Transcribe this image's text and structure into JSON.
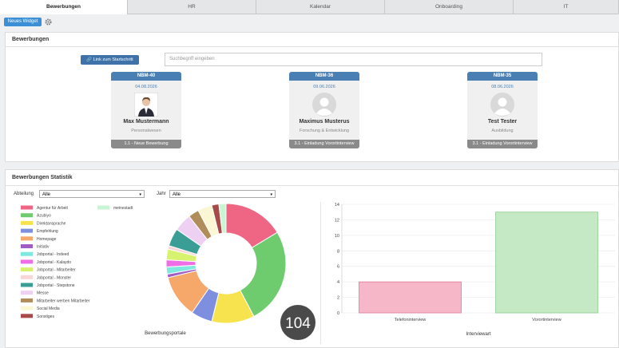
{
  "tabs": [
    "Bewerbungen",
    "HR",
    "Kalendar",
    "Onboarding",
    "IT"
  ],
  "toolbar": {
    "button": "Neues Widget"
  },
  "panel": {
    "title": "Bewerbungen",
    "link_button": "Link zum Startschritt",
    "search_placeholder": "Suchbegriff eingeben",
    "cards": [
      {
        "id": "NBM-40",
        "date": "04.08.2026",
        "name": "Max Mustermann",
        "department": "Personalwesen",
        "status": "1.1 - Neue Bewerbung"
      },
      {
        "id": "NBM-36",
        "date": "09.06.2026",
        "name": "Maximus Musterus",
        "department": "Forschung & Entwicklung",
        "status": "3.1 - Einladung Vorortinterview"
      },
      {
        "id": "NBM-35",
        "date": "08.06.2026",
        "name": "Test Tester",
        "department": "Ausbildung",
        "status": "3.1 - Einladung Vorortinterview"
      }
    ]
  },
  "statistik": {
    "title": "Bewerbungen Statistik",
    "filter_abteilung_label": "Abteilung",
    "filter_abteilung_value": "Alle",
    "filter_jahr_label": "Jahr",
    "filter_jahr_value": "Alle"
  },
  "chart_data": [
    {
      "type": "pie",
      "donut": true,
      "xlabel": "Bewerbungsportale",
      "total": 104,
      "categories": [
        "Agentur für Arbeit",
        "Azubiyo",
        "Direktansprache",
        "Empfehlung",
        "Homepage",
        "Initiativ",
        "Jobportal - Indeed",
        "Jobportal - Kalaydo",
        "Jobportal - Mitarbeiter",
        "Jobportal - Monster",
        "Jobportal - Stepstone",
        "Messe",
        "Mitarbeiter werben Mitarbeiter",
        "Social Media",
        "Sonstiges",
        "meinestadt"
      ],
      "values": [
        17,
        27,
        12,
        6,
        12,
        1,
        2,
        2,
        3,
        1,
        5,
        5,
        3,
        4,
        2,
        2
      ],
      "colors": [
        "#ef6584",
        "#6ecb6e",
        "#f7e34d",
        "#7f8fe0",
        "#f5a86a",
        "#a05cc4",
        "#7fe8e0",
        "#ef6ee8",
        "#d6f26e",
        "#f7d6d6",
        "#3a9e96",
        "#eed0f2",
        "#b08d5a",
        "#fbf6d4",
        "#a84a4a",
        "#c8f5d2"
      ]
    },
    {
      "type": "bar",
      "xlabel": "Interviewart",
      "categories": [
        "Telefoninterview",
        "Vorortinterview"
      ],
      "values": [
        4,
        13
      ],
      "colors": [
        "#f6b8c8",
        "#c5e8c5"
      ],
      "edge_colors": [
        "#e07a95",
        "#8fcf8f"
      ],
      "ylim": [
        0,
        14
      ],
      "yticks": [
        0,
        2,
        4,
        6,
        8,
        10,
        12,
        14
      ],
      "grid": true
    }
  ]
}
